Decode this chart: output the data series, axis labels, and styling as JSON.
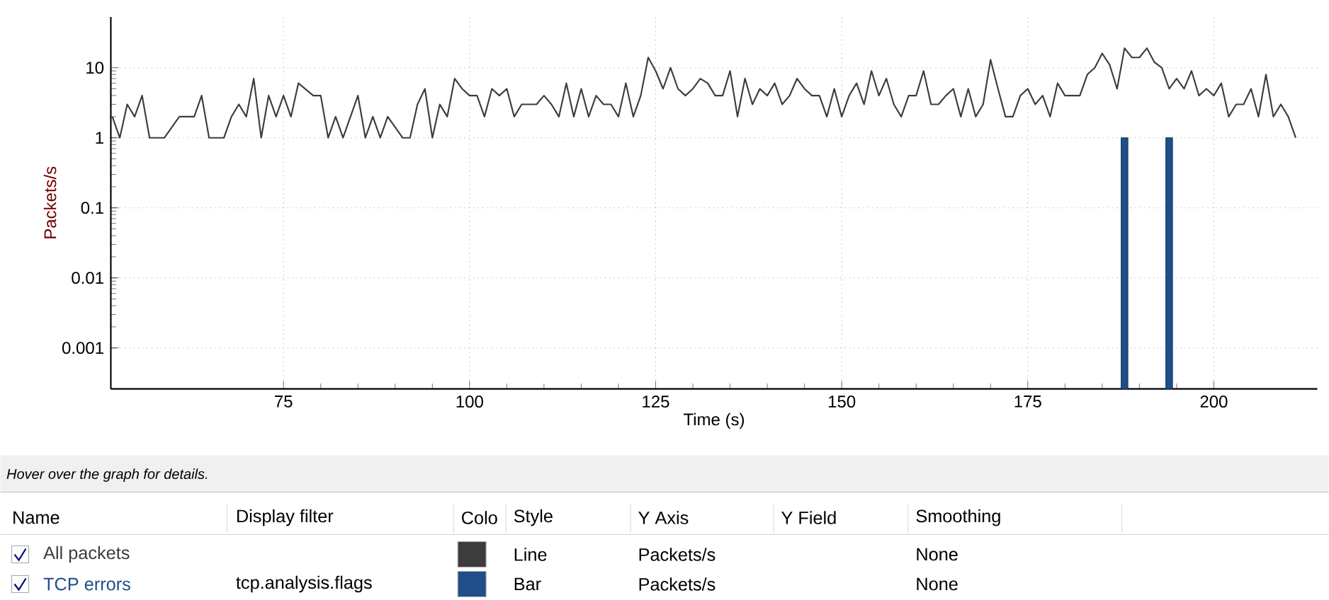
{
  "chart_data": {
    "type": "line",
    "x": [
      52,
      53,
      54,
      55,
      56,
      57,
      58,
      59,
      60,
      61,
      62,
      63,
      64,
      65,
      66,
      67,
      68,
      69,
      70,
      71,
      72,
      73,
      74,
      75,
      76,
      77,
      78,
      79,
      80,
      81,
      82,
      83,
      84,
      85,
      86,
      87,
      88,
      89,
      90,
      91,
      92,
      93,
      94,
      95,
      96,
      97,
      98,
      99,
      100,
      101,
      102,
      103,
      104,
      105,
      106,
      107,
      108,
      109,
      110,
      111,
      112,
      113,
      114,
      115,
      116,
      117,
      118,
      119,
      120,
      121,
      122,
      123,
      124,
      125,
      126,
      127,
      128,
      129,
      130,
      131,
      132,
      133,
      134,
      135,
      136,
      137,
      138,
      139,
      140,
      141,
      142,
      143,
      144,
      145,
      146,
      147,
      148,
      149,
      150,
      151,
      152,
      153,
      154,
      155,
      156,
      157,
      158,
      159,
      160,
      161,
      162,
      163,
      164,
      165,
      166,
      167,
      168,
      169,
      170,
      171,
      172,
      173,
      174,
      175,
      176,
      177,
      178,
      179,
      180,
      181,
      182,
      183,
      184,
      185,
      186,
      187,
      188,
      189,
      190,
      191,
      192,
      193,
      194,
      195,
      196,
      197,
      198,
      199,
      200,
      201,
      202,
      203,
      204,
      205,
      206,
      207,
      208,
      209,
      210,
      211
    ],
    "series": [
      {
        "name": "All packets",
        "color": "#3c3c3c",
        "values": [
          2,
          1,
          3,
          2,
          4,
          1,
          1,
          1,
          null,
          2,
          null,
          2,
          4,
          1,
          1,
          1,
          2,
          3,
          2,
          7,
          1,
          4,
          2,
          4,
          2,
          6,
          null,
          4,
          4,
          1,
          2,
          1,
          null,
          4,
          1,
          2,
          1,
          2,
          null,
          1,
          1,
          3,
          5,
          1,
          3,
          2,
          7,
          5,
          4,
          4,
          2,
          5,
          4,
          5,
          2,
          3,
          3,
          3,
          4,
          3,
          2,
          6,
          2,
          5,
          2,
          4,
          3,
          3,
          2,
          6,
          2,
          4,
          14,
          9,
          5,
          10,
          5,
          4,
          5,
          7,
          6,
          4,
          4,
          9,
          2,
          7,
          3,
          5,
          4,
          6,
          3,
          4,
          7,
          5,
          4,
          4,
          2,
          5,
          2,
          4,
          6,
          3,
          9,
          4,
          7,
          3,
          2,
          4,
          4,
          9,
          3,
          3,
          4,
          5,
          2,
          5,
          2,
          3,
          13,
          5,
          2,
          2,
          4,
          5,
          3,
          4,
          2,
          6,
          4,
          4,
          4,
          8,
          10,
          16,
          11,
          5,
          19,
          14,
          14,
          19,
          12,
          10,
          5,
          7,
          5,
          9,
          4,
          5,
          4,
          6,
          2,
          3,
          3,
          5,
          2,
          8,
          2,
          3,
          2,
          1
        ]
      },
      {
        "name": "TCP errors",
        "type": "bar",
        "color": "#1f4e8a",
        "x": [
          188,
          194
        ],
        "values": [
          1,
          1
        ]
      }
    ],
    "xlabel": "Time (s)",
    "ylabel": "Packets/s",
    "xlim": [
      51.8,
      213.9
    ],
    "xticks": [
      75,
      100,
      125,
      150,
      175,
      200
    ],
    "ylim": [
      0.00026,
      53
    ],
    "yticks": [
      0.001,
      0.01,
      0.1,
      1,
      10
    ],
    "log": "y",
    "grid": true,
    "annotations": [
      "Hover over the graph for details.",
      "Name",
      "Display filter",
      "Colo",
      "Style",
      "Y Axis",
      "Y Field",
      "Smoothing",
      "tcp.analysis.flags",
      "Line",
      "Bar",
      "Packets/s",
      "Packets/s",
      "None",
      "None"
    ]
  }
}
